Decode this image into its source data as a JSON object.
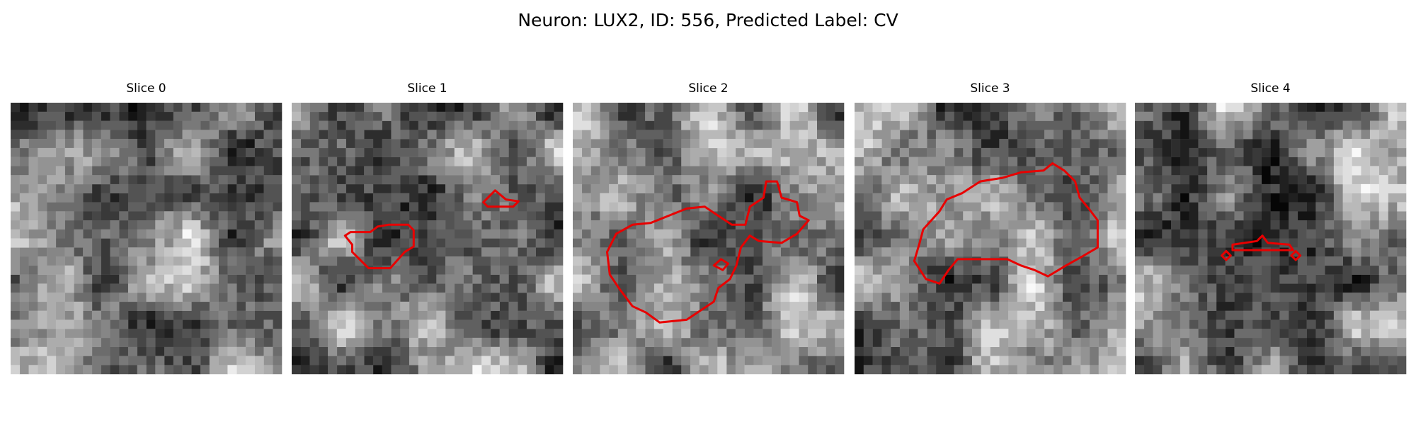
{
  "title": "Neuron: LUX2, ID: 556, Predicted Label: CV",
  "panels": [
    {
      "title": "Slice 0"
    },
    {
      "title": "Slice 1"
    },
    {
      "title": "Slice 2"
    },
    {
      "title": "Slice 3"
    },
    {
      "title": "Slice 4"
    }
  ]
}
